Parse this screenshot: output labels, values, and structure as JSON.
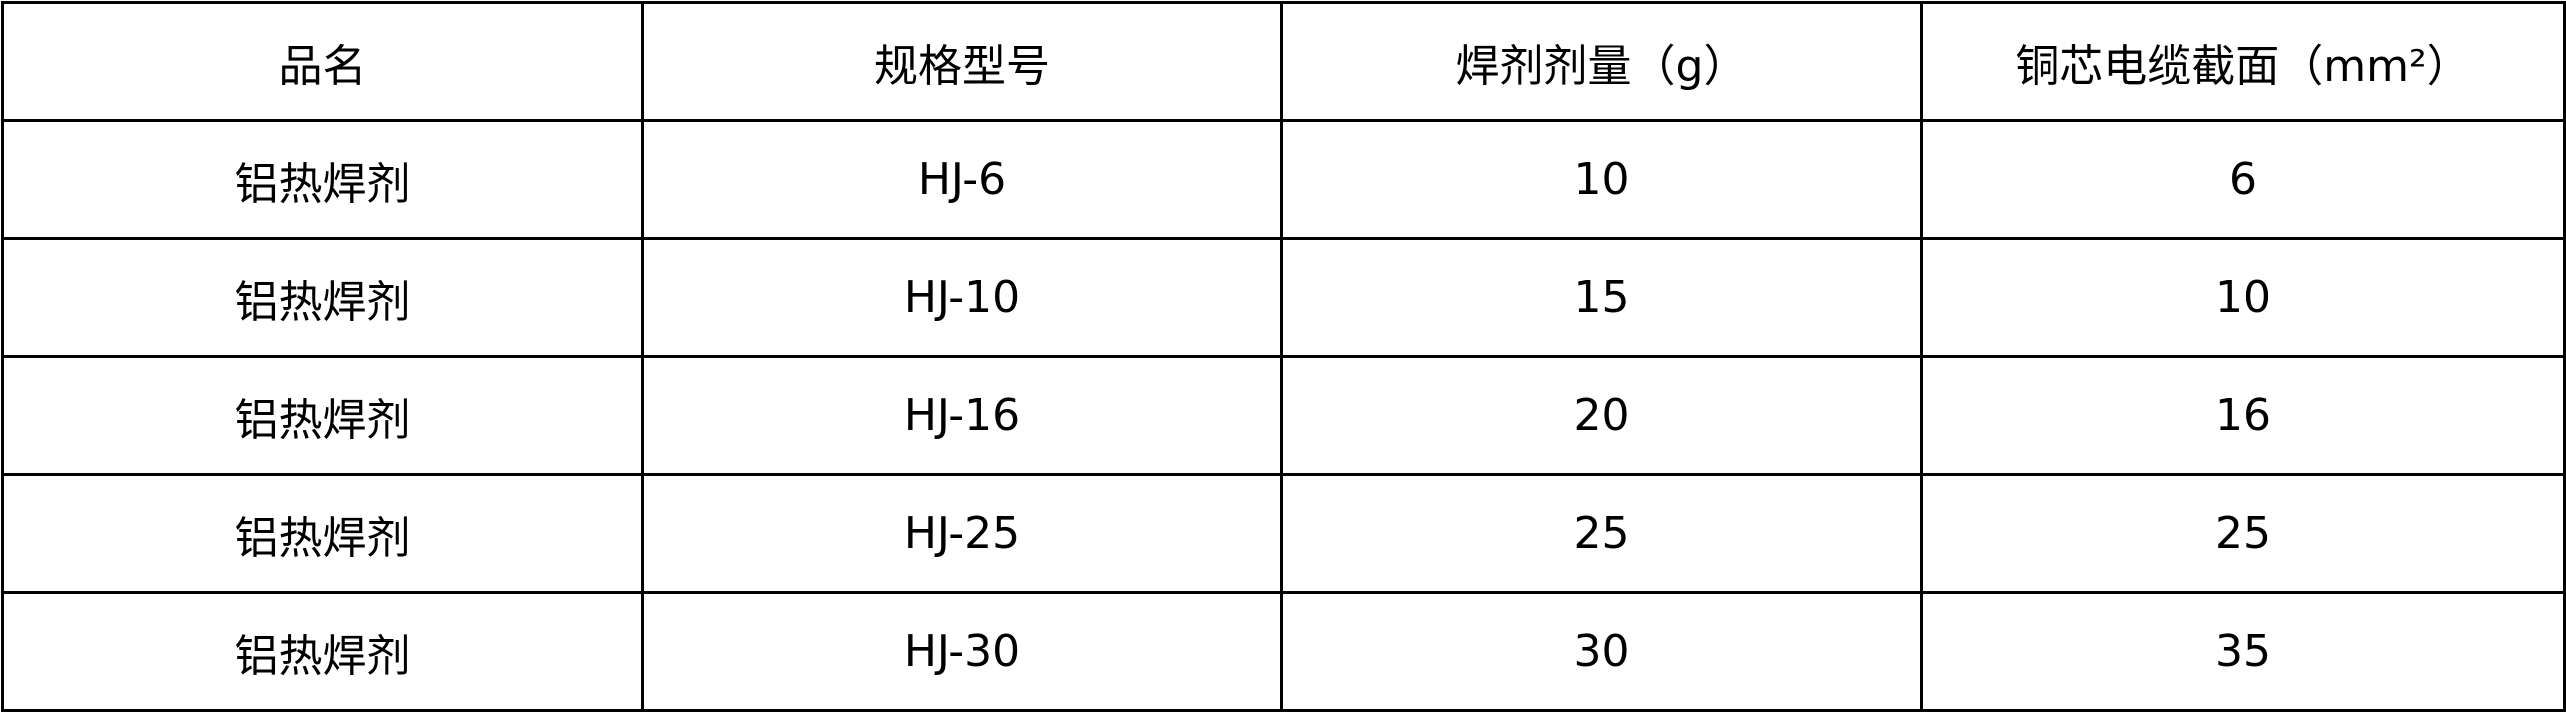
{
  "table": {
    "headers": [
      "品名",
      "规格型号",
      "焊剂剂量（g）",
      "铜芯电缆截面（mm²）"
    ],
    "rows": [
      [
        "铝热焊剂",
        "HJ-6",
        "10",
        "6"
      ],
      [
        "铝热焊剂",
        "HJ-10",
        "15",
        "10"
      ],
      [
        "铝热焊剂",
        "HJ-16",
        "20",
        "16"
      ],
      [
        "铝热焊剂",
        "HJ-25",
        "25",
        "25"
      ],
      [
        "铝热焊剂",
        "HJ-30",
        "30",
        "35"
      ]
    ]
  }
}
